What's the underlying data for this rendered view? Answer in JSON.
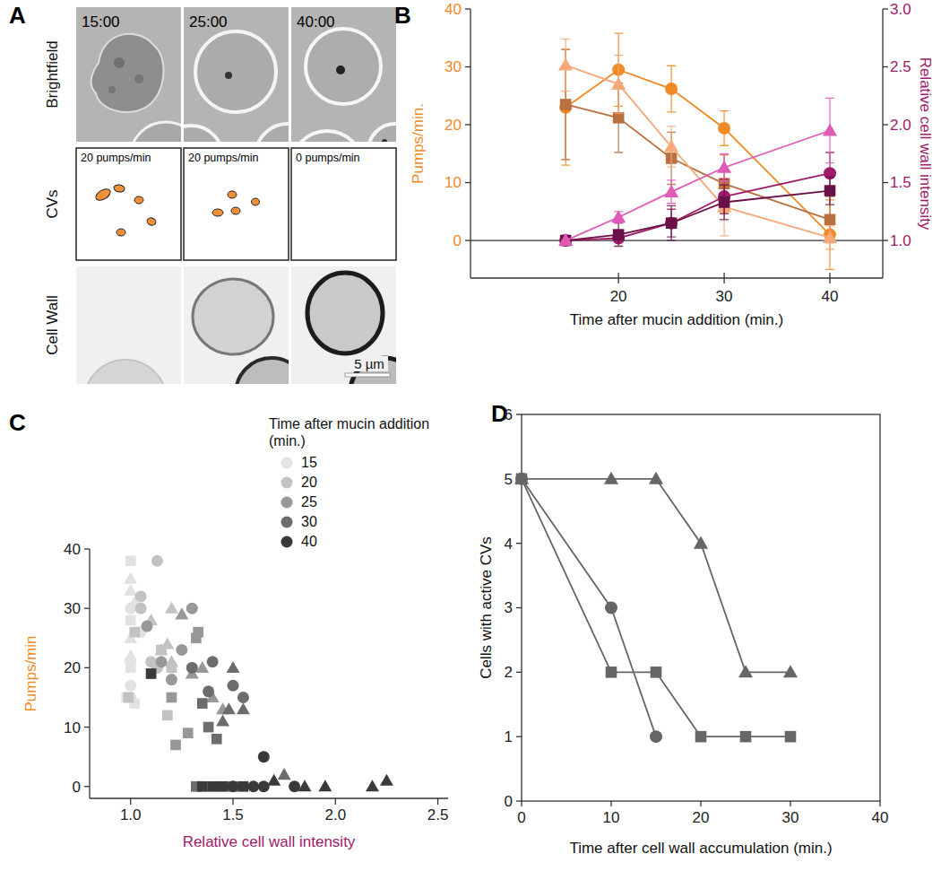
{
  "panel_a": {
    "panel": "A",
    "rows": [
      "Brightfield",
      "CVs",
      "Cell Wall"
    ],
    "times": [
      "15:00",
      "25:00",
      "40:00"
    ],
    "pump_labels": [
      "20 pumps/min",
      "20 pumps/min",
      "0 pumps/min"
    ],
    "scale_bar": "5 µm"
  },
  "chart_data": [
    {
      "panel": "B",
      "type": "line",
      "xlabel": "Time after mucin addition (min.)",
      "ylabel": "Pumps/min.",
      "y2label": "Relative cell wall intensity",
      "xlim": [
        6,
        45
      ],
      "xticks": [
        20,
        30,
        40
      ],
      "ylim": [
        -6.5,
        40
      ],
      "yticks": [
        0,
        10,
        20,
        30,
        40
      ],
      "y2lim": [
        0.675,
        3.0
      ],
      "y2ticks": [
        {
          "value": 1,
          "label": "1.0"
        },
        {
          "value": 1.5,
          "label": "1.5"
        },
        {
          "value": 2,
          "label": "2.0"
        },
        {
          "value": 2.5,
          "label": "2.5"
        },
        {
          "value": 3,
          "label": "3.0"
        }
      ],
      "series": [
        {
          "color": "#F08A24",
          "marker": "circle",
          "x": [
            15,
            20,
            25,
            30,
            40
          ],
          "values": [
            23,
            29.5,
            26.2,
            19.4,
            1
          ],
          "errors": [
            10,
            6.3,
            4,
            3,
            6
          ]
        },
        {
          "color": "#B8713F",
          "marker": "square",
          "x": [
            15,
            20,
            25,
            30,
            40
          ],
          "values": [
            23.5,
            21.2,
            14.2,
            9.8,
            3.6
          ],
          "errors": [
            9.5,
            6,
            4.5,
            5,
            4
          ]
        },
        {
          "color": "#F6A878",
          "marker": "triangle",
          "x": [
            15,
            20,
            25,
            30,
            40
          ],
          "values": [
            30.3,
            27,
            16.2,
            5.8,
            0.5
          ],
          "errors": [
            4.5,
            5,
            3.5,
            5,
            2
          ]
        },
        {
          "color": "#A01A6A",
          "marker": "circle",
          "axis": "y2",
          "x": [
            15,
            20,
            25,
            30,
            40
          ],
          "values": [
            1.0,
            1.02,
            1.15,
            1.38,
            1.58
          ],
          "errors": [
            0,
            0.03,
            0.12,
            0.15,
            0.18
          ]
        },
        {
          "color": "#6A1046",
          "marker": "square",
          "axis": "y2",
          "x": [
            15,
            20,
            25,
            30,
            40
          ],
          "values": [
            1.0,
            1.05,
            1.15,
            1.33,
            1.43
          ],
          "errors": [
            0,
            0.1,
            0.15,
            0.15,
            0.12
          ]
        },
        {
          "color": "#E05BB5",
          "marker": "triangle",
          "axis": "y2",
          "x": [
            15,
            20,
            25,
            30,
            40
          ],
          "values": [
            1.0,
            1.2,
            1.42,
            1.63,
            1.95
          ],
          "errors": [
            0,
            0.05,
            0.1,
            0.12,
            0.28
          ]
        }
      ]
    },
    {
      "panel": "C",
      "type": "scatter",
      "xlabel": "Relative cell wall intensity",
      "ylabel": "Pumps/min",
      "legend_title": "Time after mucin addition (min.)",
      "legend": "upper right",
      "xlim": [
        0.8,
        2.55
      ],
      "xticks": [
        {
          "value": 1,
          "label": "1.0"
        },
        {
          "value": 1.5,
          "label": "1.5"
        },
        {
          "value": 2,
          "label": "2.0"
        },
        {
          "value": 2.5,
          "label": "2.5"
        }
      ],
      "ylim": [
        -2,
        40
      ],
      "yticks": [
        0,
        10,
        20,
        30,
        40
      ],
      "series": [
        {
          "name": "15",
          "color": "#e2e2e2",
          "marker": "circle",
          "x": [
            1.0,
            1.0,
            1.0,
            1.0,
            1.05
          ],
          "values": [
            21,
            17,
            15,
            30,
            26
          ]
        },
        {
          "name": "15",
          "color": "#e2e2e2",
          "marker": "square",
          "x": [
            1.0,
            1.0,
            1.0,
            0.98,
            1.02
          ],
          "values": [
            38,
            28,
            20,
            15,
            14
          ]
        },
        {
          "name": "15",
          "color": "#e2e2e2",
          "marker": "triangle",
          "x": [
            1.0,
            1.0,
            1.02,
            1.0,
            1.0
          ],
          "values": [
            35,
            33,
            31,
            25,
            22
          ]
        },
        {
          "name": "20",
          "color": "#c2c2c2",
          "marker": "circle",
          "x": [
            1.13,
            1.05,
            1.05,
            1.1,
            1.13
          ],
          "values": [
            38,
            32,
            30,
            21,
            20
          ]
        },
        {
          "name": "20",
          "color": "#c2c2c2",
          "marker": "square",
          "x": [
            1.02,
            1.15,
            1.18,
            0.99,
            1.2
          ],
          "values": [
            26,
            23,
            12,
            15,
            20
          ]
        },
        {
          "name": "20",
          "color": "#c2c2c2",
          "marker": "triangle",
          "x": [
            1.1,
            1.2,
            1.15,
            1.2,
            1.18
          ],
          "values": [
            28,
            30,
            23,
            21,
            24
          ]
        },
        {
          "name": "25",
          "color": "#989898",
          "marker": "circle",
          "x": [
            1.3,
            1.08,
            1.25,
            1.2,
            1.15
          ],
          "values": [
            30,
            27,
            23,
            18,
            21
          ]
        },
        {
          "name": "25",
          "color": "#989898",
          "marker": "square",
          "x": [
            1.32,
            1.33,
            1.22,
            1.28,
            1.2
          ],
          "values": [
            25,
            26,
            7,
            9,
            15
          ]
        },
        {
          "name": "25",
          "color": "#989898",
          "marker": "triangle",
          "x": [
            1.25,
            1.35,
            1.3,
            1.4,
            1.45
          ],
          "values": [
            29,
            20,
            19,
            15,
            13
          ]
        },
        {
          "name": "30",
          "color": "#6c6c6c",
          "marker": "circle",
          "x": [
            1.3,
            1.38,
            1.4,
            1.5,
            1.55
          ],
          "values": [
            20,
            16,
            21,
            17,
            15
          ]
        },
        {
          "name": "30",
          "color": "#6c6c6c",
          "marker": "square",
          "x": [
            1.35,
            1.38,
            1.42,
            1.32,
            1.5
          ],
          "values": [
            14,
            10,
            8,
            0,
            0
          ]
        },
        {
          "name": "30",
          "color": "#6c6c6c",
          "marker": "triangle",
          "x": [
            1.5,
            1.45,
            1.55,
            1.48,
            1.75
          ],
          "values": [
            20,
            11,
            13,
            13,
            2
          ]
        },
        {
          "name": "40",
          "color": "#3a3a3a",
          "marker": "circle",
          "x": [
            1.65,
            1.65,
            1.8,
            1.6,
            1.5
          ],
          "values": [
            5,
            0,
            0,
            0,
            0
          ]
        },
        {
          "name": "40",
          "color": "#3a3a3a",
          "marker": "square",
          "x": [
            1.1,
            1.35,
            1.4,
            1.45,
            1.55
          ],
          "values": [
            19,
            0,
            0,
            0,
            0
          ]
        },
        {
          "name": "40",
          "color": "#3a3a3a",
          "marker": "triangle",
          "x": [
            1.7,
            1.85,
            1.95,
            2.18,
            2.25
          ],
          "values": [
            1,
            0,
            0,
            0,
            1
          ]
        }
      ]
    },
    {
      "panel": "D",
      "type": "line",
      "xlabel": "Time after cell wall accumulation (min.)",
      "ylabel": "Cells with active CVs",
      "xlim": [
        0,
        40
      ],
      "xticks": [
        0,
        10,
        20,
        30,
        40
      ],
      "ylim": [
        0,
        6
      ],
      "yticks": [
        0,
        1,
        2,
        3,
        4,
        5,
        6
      ],
      "series": [
        {
          "color": "#666666",
          "marker": "circle",
          "x": [
            0,
            10,
            15
          ],
          "values": [
            5,
            3,
            1
          ]
        },
        {
          "color": "#666666",
          "marker": "square",
          "x": [
            0,
            10,
            15,
            20,
            25,
            30
          ],
          "values": [
            5,
            2,
            2,
            1,
            1,
            1
          ]
        },
        {
          "color": "#666666",
          "marker": "triangle",
          "x": [
            0,
            10,
            15,
            20,
            25,
            30
          ],
          "values": [
            5,
            5,
            5,
            4,
            2,
            2
          ]
        }
      ]
    }
  ]
}
